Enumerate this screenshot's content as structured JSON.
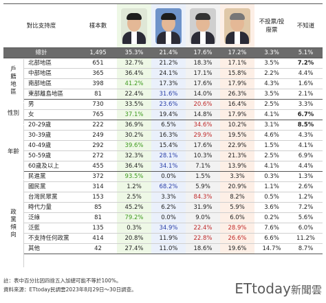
{
  "header": {
    "title": "對比支持度",
    "sample_label": "樣本數",
    "candidates": [
      {
        "name": "candidate-1",
        "bg": "#eef8e6"
      },
      {
        "name": "candidate-2",
        "bg": "#eaf0fb"
      },
      {
        "name": "candidate-3",
        "bg": "#f2f2f2"
      },
      {
        "name": "candidate-4",
        "bg": "#fdefe6"
      }
    ],
    "no_vote": "不投票/投廢票",
    "unknown": "不知道"
  },
  "total": {
    "label": "總計",
    "n": "1,495",
    "v": [
      "35.3%",
      "21.4%",
      "17.6%",
      "17.2%",
      "3.3%",
      "5.1%"
    ]
  },
  "groups": [
    {
      "label": "戶籍地區",
      "rows": [
        {
          "label": "北部地區",
          "n": "651",
          "v": [
            "32.7%",
            "21.2%",
            "18.3%",
            "17.1%",
            "3.5%",
            "7.2%"
          ],
          "style": [
            "",
            "",
            "",
            "",
            "",
            "bold"
          ]
        },
        {
          "label": "中部地區",
          "n": "365",
          "v": [
            "36.4%",
            "24.1%",
            "17.1%",
            "15.8%",
            "2.2%",
            "4.4%"
          ],
          "style": [
            "",
            "",
            "",
            "",
            "",
            ""
          ]
        },
        {
          "label": "南部地區",
          "n": "398",
          "v": [
            "41.2%",
            "17.3%",
            "17.6%",
            "17.9%",
            "4.3%",
            "1.6%"
          ],
          "style": [
            "green",
            "",
            "",
            "",
            "",
            ""
          ]
        },
        {
          "label": "東部離島地區",
          "n": "81",
          "v": [
            "22.4%",
            "31.6%",
            "14.0%",
            "26.3%",
            "3.5%",
            "2.1%"
          ],
          "style": [
            "",
            "blue",
            "",
            "",
            "",
            ""
          ]
        }
      ]
    },
    {
      "label": "性別",
      "rows": [
        {
          "label": "男",
          "n": "730",
          "v": [
            "33.5%",
            "23.6%",
            "20.6%",
            "16.4%",
            "2.5%",
            "3.3%"
          ],
          "style": [
            "",
            "blue",
            "red",
            "",
            "",
            ""
          ]
        },
        {
          "label": "女",
          "n": "765",
          "v": [
            "37.1%",
            "19.4%",
            "14.8%",
            "17.9%",
            "4.1%",
            "6.7%"
          ],
          "style": [
            "green",
            "",
            "",
            "",
            "",
            "bold"
          ]
        }
      ]
    },
    {
      "label": "年齡",
      "rows": [
        {
          "label": "20-29歲",
          "n": "222",
          "v": [
            "36.9%",
            "6.5%",
            "34.6%",
            "10.2%",
            "3.1%",
            "8.5%"
          ],
          "style": [
            "",
            "",
            "red",
            "",
            "",
            "bold"
          ]
        },
        {
          "label": "30-39歲",
          "n": "249",
          "v": [
            "30.2%",
            "16.3%",
            "29.9%",
            "19.5%",
            "4.6%",
            "4.3%"
          ],
          "style": [
            "",
            "",
            "red",
            "",
            "",
            ""
          ]
        },
        {
          "label": "40-49歲",
          "n": "292",
          "v": [
            "39.6%",
            "15.4%",
            "17.6%",
            "22.9%",
            "1.5%",
            "4.1%"
          ],
          "style": [
            "green",
            "",
            "",
            "",
            "",
            ""
          ]
        },
        {
          "label": "50-59歲",
          "n": "272",
          "v": [
            "32.3%",
            "28.1%",
            "10.3%",
            "21.3%",
            "2.5%",
            "6.9%"
          ],
          "style": [
            "",
            "blue",
            "",
            "",
            "",
            ""
          ]
        },
        {
          "label": "60歲及以上",
          "n": "455",
          "v": [
            "36.4%",
            "34.1%",
            "7.1%",
            "13.9%",
            "4.1%",
            "4.4%"
          ],
          "style": [
            "",
            "blue",
            "",
            "",
            "",
            ""
          ]
        }
      ]
    },
    {
      "label": "政黨傾向",
      "rows": [
        {
          "label": "民進黨",
          "n": "372",
          "v": [
            "93.5%",
            "0.0%",
            "1.5%",
            "3.3%",
            "0.3%",
            "1.3%"
          ],
          "style": [
            "green",
            "",
            "",
            "",
            "",
            ""
          ]
        },
        {
          "label": "國民黨",
          "n": "314",
          "v": [
            "1.2%",
            "68.2%",
            "5.9%",
            "20.9%",
            "1.1%",
            "2.6%"
          ],
          "style": [
            "",
            "blue",
            "",
            "",
            "",
            ""
          ]
        },
        {
          "label": "台灣民眾黨",
          "n": "153",
          "v": [
            "2.5%",
            "3.3%",
            "84.3%",
            "8.2%",
            "0.5%",
            "1.2%"
          ],
          "style": [
            "",
            "",
            "red",
            "",
            "",
            ""
          ]
        },
        {
          "label": "時代力量",
          "n": "85",
          "v": [
            "45.2%",
            "6.2%",
            "31.9%",
            "5.9%",
            "3.6%",
            "7.2%"
          ],
          "style": [
            "",
            "",
            "",
            "",
            "",
            ""
          ]
        },
        {
          "label": "泛綠",
          "n": "81",
          "v": [
            "79.2%",
            "0.0%",
            "9.0%",
            "6.0%",
            "0.2%",
            "5.6%"
          ],
          "style": [
            "green",
            "",
            "",
            "",
            "",
            ""
          ]
        },
        {
          "label": "泛藍",
          "n": "135",
          "v": [
            "0.3%",
            "34.9%",
            "22.4%",
            "28.9%",
            "7.6%",
            "6.0%"
          ],
          "style": [
            "",
            "blue",
            "red",
            "red",
            "",
            ""
          ]
        },
        {
          "label": "不支持任何政黨",
          "n": "414",
          "v": [
            "20.8%",
            "11.9%",
            "22.8%",
            "26.6%",
            "6.6%",
            "11.2%"
          ],
          "style": [
            "",
            "",
            "red",
            "red",
            "",
            ""
          ]
        },
        {
          "label": "其他",
          "n": "42",
          "v": [
            "27.4%",
            "11.0%",
            "18.6%",
            "19.6%",
            "14.7%",
            "8.7%"
          ],
          "style": [
            "",
            "",
            "",
            "",
            "",
            ""
          ]
        }
      ]
    }
  ],
  "footer": {
    "note": "註：表中百分比因四捨五入加總可能不等於100%。",
    "source": "資料來源：ETtoday民調雲2023年8月29日～30日調查。"
  },
  "logo": {
    "latin": "ETtoday",
    "cjk": "新聞雲"
  }
}
